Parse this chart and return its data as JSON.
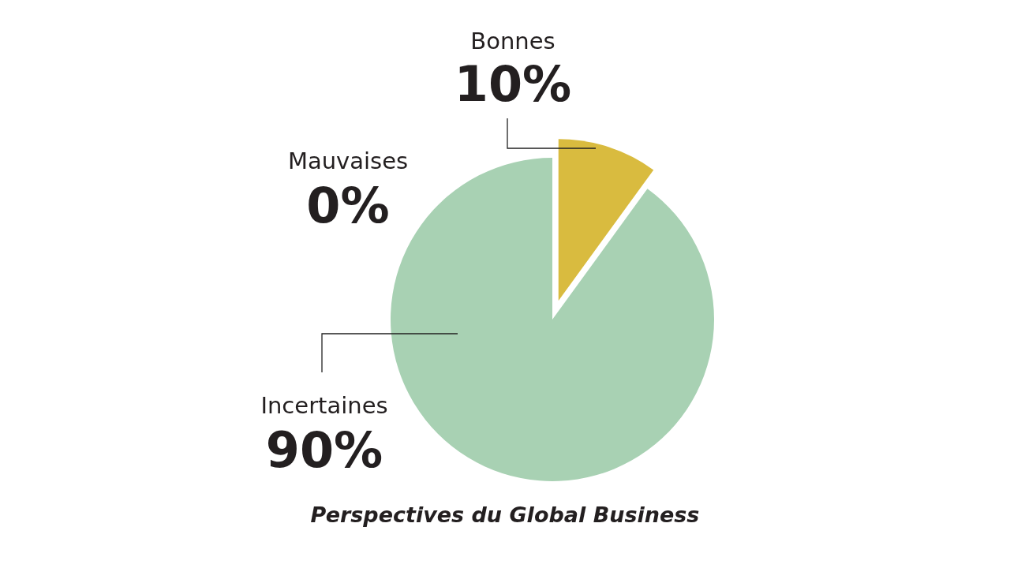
{
  "chart_data": {
    "type": "pie",
    "title": "Perspectives du Global Business",
    "categories": [
      "Bonnes",
      "Mauvaises",
      "Incertaines"
    ],
    "values": [
      10,
      0,
      90
    ],
    "colors": [
      "#d9bb3f",
      "#c0504d",
      "#a8d1b3"
    ],
    "value_labels": [
      "10%",
      "0%",
      "90%"
    ]
  }
}
